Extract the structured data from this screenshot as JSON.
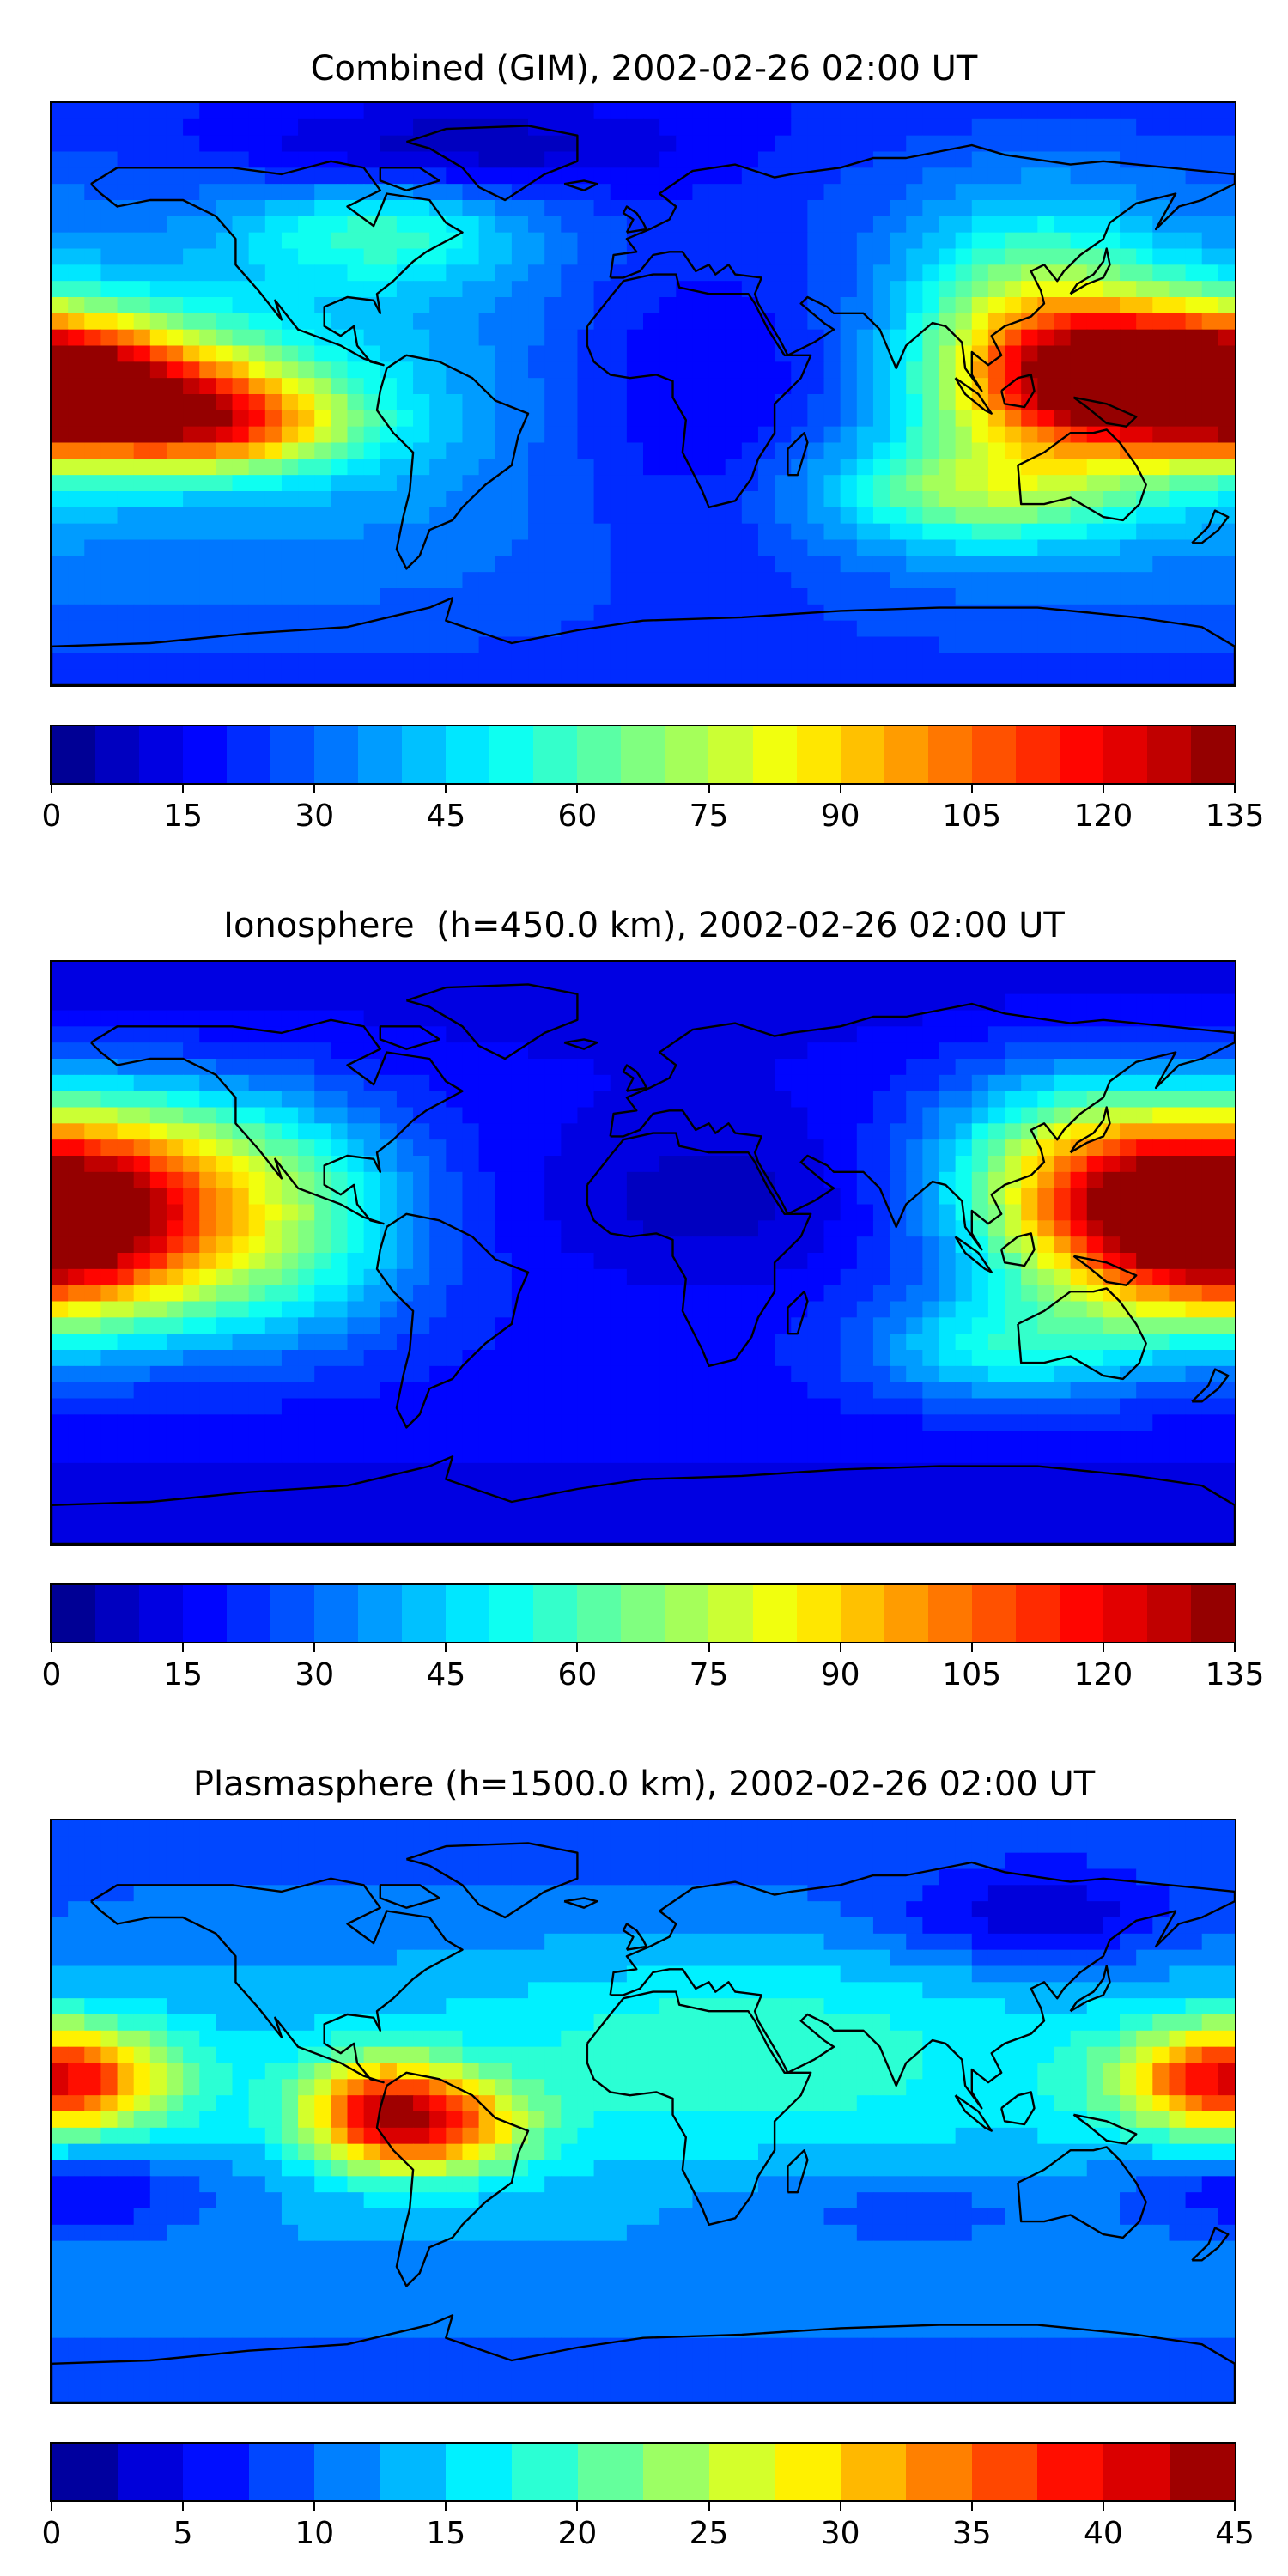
{
  "figure": {
    "panels": [
      {
        "id": "combined",
        "title": "Combined (GIM), 2002-02-26 02:00 UT",
        "colorbar": {
          "min": 0,
          "max": 135,
          "levels": 27,
          "ticks": [
            "0",
            "15",
            "30",
            "45",
            "60",
            "75",
            "90",
            "105",
            "120",
            "135"
          ]
        },
        "field": {
          "base": 40,
          "blobs": [
            {
              "lon": -175,
              "lat": 2,
              "amp": 70,
              "slon": 45,
              "slat": 14
            },
            {
              "lon": -130,
              "lat": -10,
              "amp": 55,
              "slon": 30,
              "slat": 10
            },
            {
              "lon": 160,
              "lat": 5,
              "amp": 75,
              "slon": 35,
              "slat": 16
            },
            {
              "lon": 120,
              "lat": 20,
              "amp": 40,
              "slon": 25,
              "slat": 25
            },
            {
              "lon": 100,
              "lat": -30,
              "amp": 35,
              "slon": 35,
              "slat": 12
            },
            {
              "lon": -80,
              "lat": 50,
              "amp": 25,
              "slon": 30,
              "slat": 12
            },
            {
              "lon": 20,
              "lat": 0,
              "amp": -25,
              "slon": 40,
              "slat": 40
            },
            {
              "lon": -60,
              "lat": 75,
              "amp": -20,
              "slon": 50,
              "slat": 10
            }
          ]
        }
      },
      {
        "id": "ionosphere",
        "title": "Ionosphere  (h=450.0 km), 2002-02-26 02:00 UT",
        "colorbar": {
          "min": 0,
          "max": 135,
          "levels": 27,
          "ticks": [
            "0",
            "15",
            "30",
            "45",
            "60",
            "75",
            "90",
            "105",
            "120",
            "135"
          ]
        },
        "field": {
          "base": 20,
          "blobs": [
            {
              "lon": -170,
              "lat": 0,
              "amp": 65,
              "slon": 45,
              "slat": 20
            },
            {
              "lon": -160,
              "lat": 30,
              "amp": 50,
              "slon": 40,
              "slat": 18
            },
            {
              "lon": 165,
              "lat": 10,
              "amp": 70,
              "slon": 35,
              "slat": 18
            },
            {
              "lon": 130,
              "lat": 30,
              "amp": 40,
              "slon": 30,
              "slat": 20
            },
            {
              "lon": 110,
              "lat": -30,
              "amp": 30,
              "slon": 30,
              "slat": 12
            },
            {
              "lon": -100,
              "lat": 10,
              "amp": 20,
              "slon": 25,
              "slat": 25
            },
            {
              "lon": 20,
              "lat": 15,
              "amp": -12,
              "slon": 40,
              "slat": 20
            }
          ]
        }
      },
      {
        "id": "plasmasphere",
        "title": "Plasmasphere (h=1500.0 km), 2002-02-26 02:00 UT",
        "colorbar": {
          "min": 0,
          "max": 45,
          "levels": 18,
          "ticks": [
            "0",
            "5",
            "10",
            "15",
            "20",
            "25",
            "30",
            "35",
            "40",
            "45"
          ]
        },
        "field": {
          "base": 14,
          "blobs": [
            {
              "lon": -80,
              "lat": 0,
              "amp": 24,
              "slon": 18,
              "slat": 12
            },
            {
              "lon": -55,
              "lat": -5,
              "amp": 14,
              "slon": 18,
              "slat": 10
            },
            {
              "lon": -175,
              "lat": 10,
              "amp": 14,
              "slon": 25,
              "slat": 12
            },
            {
              "lon": 175,
              "lat": 10,
              "amp": 14,
              "slon": 25,
              "slat": 12
            },
            {
              "lon": 30,
              "lat": 20,
              "amp": 6,
              "slon": 60,
              "slat": 20
            },
            {
              "lon": 120,
              "lat": 60,
              "amp": -8,
              "slon": 30,
              "slat": 10
            },
            {
              "lon": -170,
              "lat": -25,
              "amp": -8,
              "slon": 30,
              "slat": 10
            },
            {
              "lon": 80,
              "lat": -30,
              "amp": -4,
              "slon": 40,
              "slat": 10
            }
          ]
        }
      }
    ]
  },
  "colormap": [
    "#00007f",
    "#0000c8",
    "#0000ff",
    "#0040ff",
    "#0080ff",
    "#00bfff",
    "#00ffff",
    "#40ffbf",
    "#80ff80",
    "#bfff40",
    "#ffff00",
    "#ffbf00",
    "#ff8000",
    "#ff4000",
    "#ff0000",
    "#c80000",
    "#7f0000"
  ],
  "map": {
    "projection": "equirectangular",
    "lon_range": [
      -180,
      180
    ],
    "lat_range": [
      -90,
      90
    ],
    "coastlines": "black"
  }
}
